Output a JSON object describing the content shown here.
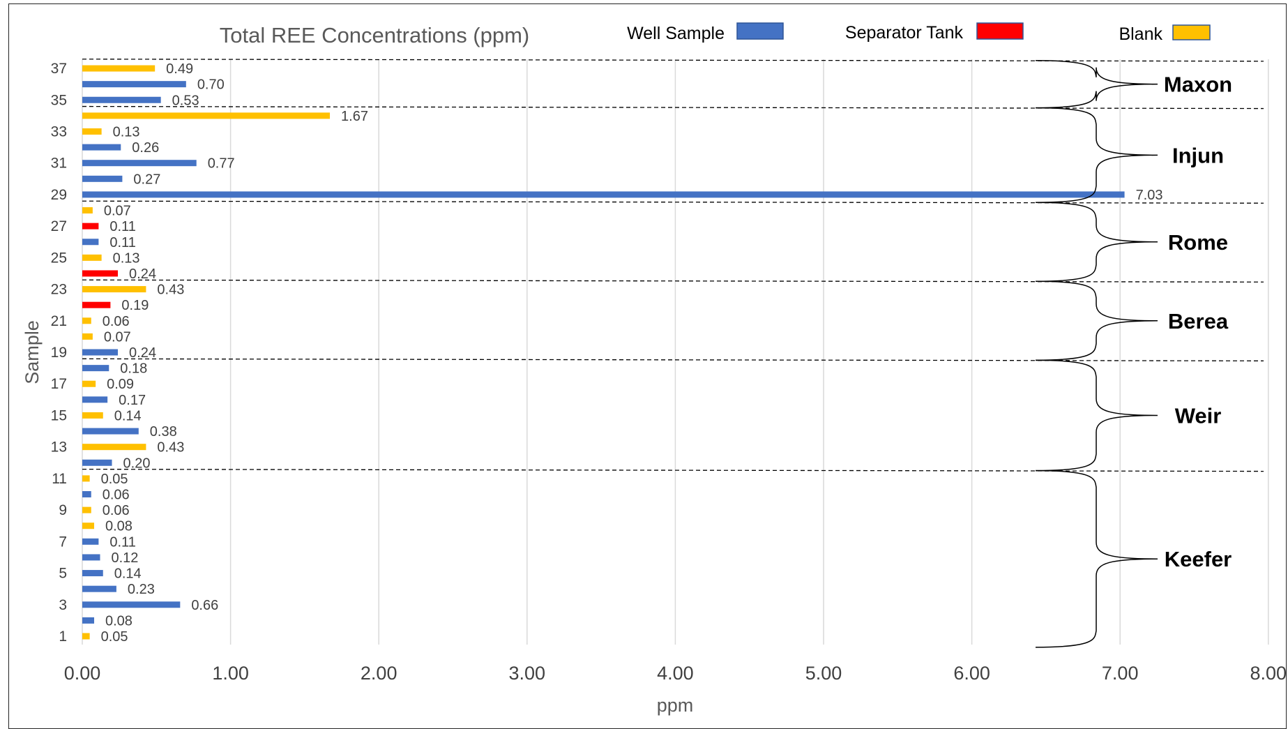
{
  "chart_data": {
    "type": "bar",
    "orientation": "horizontal",
    "title": "Total REE Concentrations (ppm)",
    "xlabel": "ppm",
    "ylabel": "Sample",
    "xlim": [
      0,
      8
    ],
    "x_ticks": [
      "0.00",
      "1.00",
      "2.00",
      "3.00",
      "4.00",
      "5.00",
      "6.00",
      "7.00",
      "8.00"
    ],
    "y_tick_labels": [
      "1",
      "3",
      "5",
      "7",
      "9",
      "11",
      "13",
      "15",
      "17",
      "19",
      "21",
      "23",
      "25",
      "27",
      "29",
      "31",
      "33",
      "35",
      "37"
    ],
    "grid": "vertical",
    "legend_position": "top",
    "legend": [
      {
        "label": "Well Sample",
        "color": "#4472c4"
      },
      {
        "label": "Separator Tank",
        "color": "#ff0000"
      },
      {
        "label": "Blank",
        "color": "#ffc000"
      }
    ],
    "colors": {
      "Well Sample": "#4472c4",
      "Separator Tank": "#ff0000",
      "Blank": "#ffc000"
    },
    "samples": [
      {
        "sample": 1,
        "value": 0.05,
        "label": "0.05",
        "type": "Blank"
      },
      {
        "sample": 2,
        "value": 0.08,
        "label": "0.08",
        "type": "Well Sample"
      },
      {
        "sample": 3,
        "value": 0.66,
        "label": "0.66",
        "type": "Well Sample"
      },
      {
        "sample": 4,
        "value": 0.23,
        "label": "0.23",
        "type": "Well Sample"
      },
      {
        "sample": 5,
        "value": 0.14,
        "label": "0.14",
        "type": "Well Sample"
      },
      {
        "sample": 6,
        "value": 0.12,
        "label": "0.12",
        "type": "Well Sample"
      },
      {
        "sample": 7,
        "value": 0.11,
        "label": "0.11",
        "type": "Well Sample"
      },
      {
        "sample": 8,
        "value": 0.08,
        "label": "0.08",
        "type": "Blank"
      },
      {
        "sample": 9,
        "value": 0.06,
        "label": "0.06",
        "type": "Blank"
      },
      {
        "sample": 10,
        "value": 0.06,
        "label": "0.06",
        "type": "Well Sample"
      },
      {
        "sample": 11,
        "value": 0.05,
        "label": "0.05",
        "type": "Blank"
      },
      {
        "sample": 12,
        "value": 0.2,
        "label": "0.20",
        "type": "Well Sample"
      },
      {
        "sample": 13,
        "value": 0.43,
        "label": "0.43",
        "type": "Blank"
      },
      {
        "sample": 14,
        "value": 0.38,
        "label": "0.38",
        "type": "Well Sample"
      },
      {
        "sample": 15,
        "value": 0.14,
        "label": "0.14",
        "type": "Blank"
      },
      {
        "sample": 16,
        "value": 0.17,
        "label": "0.17",
        "type": "Well Sample"
      },
      {
        "sample": 17,
        "value": 0.09,
        "label": "0.09",
        "type": "Blank"
      },
      {
        "sample": 18,
        "value": 0.18,
        "label": "0.18",
        "type": "Well Sample"
      },
      {
        "sample": 19,
        "value": 0.24,
        "label": "0.24",
        "type": "Well Sample"
      },
      {
        "sample": 20,
        "value": 0.07,
        "label": "0.07",
        "type": "Blank"
      },
      {
        "sample": 21,
        "value": 0.06,
        "label": "0.06",
        "type": "Blank"
      },
      {
        "sample": 22,
        "value": 0.19,
        "label": "0.19",
        "type": "Separator Tank"
      },
      {
        "sample": 23,
        "value": 0.43,
        "label": "0.43",
        "type": "Blank"
      },
      {
        "sample": 24,
        "value": 0.24,
        "label": "0.24",
        "type": "Separator Tank"
      },
      {
        "sample": 25,
        "value": 0.13,
        "label": "0.13",
        "type": "Blank"
      },
      {
        "sample": 26,
        "value": 0.11,
        "label": "0.11",
        "type": "Well Sample"
      },
      {
        "sample": 27,
        "value": 0.11,
        "label": "0.11",
        "type": "Separator Tank"
      },
      {
        "sample": 28,
        "value": 0.07,
        "label": "0.07",
        "type": "Blank"
      },
      {
        "sample": 29,
        "value": 7.03,
        "label": "7.03",
        "type": "Well Sample"
      },
      {
        "sample": 30,
        "value": 0.27,
        "label": "0.27",
        "type": "Well Sample"
      },
      {
        "sample": 31,
        "value": 0.77,
        "label": "0.77",
        "type": "Well Sample"
      },
      {
        "sample": 32,
        "value": 0.26,
        "label": "0.26",
        "type": "Well Sample"
      },
      {
        "sample": 33,
        "value": 0.13,
        "label": "0.13",
        "type": "Blank"
      },
      {
        "sample": 34,
        "value": 1.67,
        "label": "1.67",
        "type": "Blank"
      },
      {
        "sample": 35,
        "value": 0.53,
        "label": "0.53",
        "type": "Well Sample"
      },
      {
        "sample": 36,
        "value": 0.7,
        "label": "0.70",
        "type": "Well Sample"
      },
      {
        "sample": 37,
        "value": 0.49,
        "label": "0.49",
        "type": "Blank"
      }
    ],
    "groups": [
      {
        "name": "Keefer",
        "samples": [
          1,
          11
        ]
      },
      {
        "name": "Weir",
        "samples": [
          12,
          18
        ]
      },
      {
        "name": "Berea",
        "samples": [
          19,
          23
        ]
      },
      {
        "name": "Rome",
        "samples": [
          24,
          28
        ]
      },
      {
        "name": "Injun",
        "samples": [
          29,
          34
        ]
      },
      {
        "name": "Maxon",
        "samples": [
          35,
          37
        ]
      }
    ]
  }
}
